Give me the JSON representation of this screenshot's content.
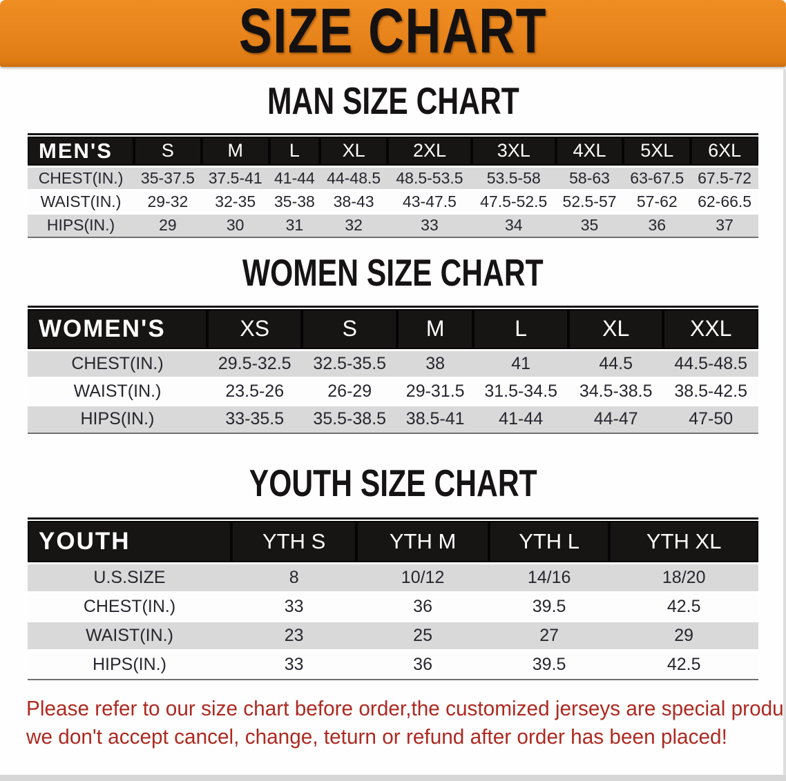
{
  "banner": {
    "title": "SIZE CHART"
  },
  "colors": {
    "banner_bg": "#e8841c",
    "banner_text": "#141110",
    "table_header_bg": "#171414",
    "table_header_text": "#ffffff",
    "row_gray": "#d9d9d9",
    "row_white": "#fdfdfd",
    "value_text": "#26262e",
    "disclaimer_red": "#ad2a21"
  },
  "tables": {
    "men": {
      "title": "MAN SIZE CHART",
      "header_label": "MEN'S",
      "sizes": [
        "S",
        "M",
        "L",
        "XL",
        "2XL",
        "3XL",
        "4XL",
        "5XL",
        "6XL"
      ],
      "rows": [
        {
          "label": "CHEST(IN.)",
          "values": [
            "35-37.5",
            "37.5-41",
            "41-44",
            "44-48.5",
            "48.5-53.5",
            "53.5-58",
            "58-63",
            "63-67.5",
            "67.5-72"
          ]
        },
        {
          "label": "WAIST(IN.)",
          "values": [
            "29-32",
            "32-35",
            "35-38",
            "38-43",
            "43-47.5",
            "47.5-52.5",
            "52.5-57",
            "57-62",
            "62-66.5"
          ]
        },
        {
          "label": "HIPS(IN.)",
          "values": [
            "29",
            "30",
            "31",
            "32",
            "33",
            "34",
            "35",
            "36",
            "37"
          ]
        }
      ]
    },
    "women": {
      "title": "WOMEN SIZE CHART",
      "header_label": "WOMEN'S",
      "sizes": [
        "XS",
        "S",
        "M",
        "L",
        "XL",
        "XXL"
      ],
      "rows": [
        {
          "label": "CHEST(IN.)",
          "values": [
            "29.5-32.5",
            "32.5-35.5",
            "38",
            "41",
            "44.5",
            "44.5-48.5"
          ]
        },
        {
          "label": "WAIST(IN.)",
          "values": [
            "23.5-26",
            "26-29",
            "29-31.5",
            "31.5-34.5",
            "34.5-38.5",
            "38.5-42.5"
          ]
        },
        {
          "label": "HIPS(IN.)",
          "values": [
            "33-35.5",
            "35.5-38.5",
            "38.5-41",
            "41-44",
            "44-47",
            "47-50"
          ]
        }
      ]
    },
    "youth": {
      "title": "YOUTH SIZE CHART",
      "header_label": "YOUTH",
      "sizes": [
        "YTH S",
        "YTH M",
        "YTH L",
        "YTH XL"
      ],
      "rows": [
        {
          "label": "U.S.SIZE",
          "values": [
            "8",
            "10/12",
            "14/16",
            "18/20"
          ]
        },
        {
          "label": "CHEST(IN.)",
          "values": [
            "33",
            "36",
            "39.5",
            "42.5"
          ]
        },
        {
          "label": "WAIST(IN.)",
          "values": [
            "23",
            "25",
            "27",
            "29"
          ]
        },
        {
          "label": "HIPS(IN.)",
          "values": [
            "33",
            "36",
            "39.5",
            "42.5"
          ]
        }
      ]
    }
  },
  "disclaimer": {
    "line1": "Please refer to our size chart before order,the customized jerseys are special products,",
    "line2": "we don't accept cancel, change, teturn or refund after order has been placed!"
  }
}
